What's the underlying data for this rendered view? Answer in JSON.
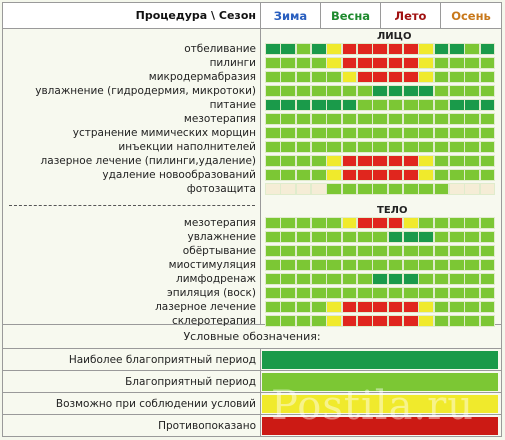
{
  "header": {
    "procedure_season": "Процедура \\ Сезон",
    "seasons": [
      {
        "label": "Зима",
        "color": "#2a5fbf"
      },
      {
        "label": "Весна",
        "color": "#1e8a2e"
      },
      {
        "label": "Лето",
        "color": "#a01010"
      },
      {
        "label": "Осень",
        "color": "#c8781a"
      }
    ]
  },
  "sections": [
    {
      "title": "ЛИЦО",
      "rows": [
        {
          "label": "отбеливание",
          "months": [
            "D",
            "D",
            "G",
            "D",
            "Y",
            "R",
            "R",
            "R",
            "R",
            "R",
            "Y",
            "D",
            "D",
            "G",
            "D"
          ]
        },
        {
          "label": "пилинги",
          "months": [
            "G",
            "G",
            "G",
            "G",
            "Y",
            "R",
            "R",
            "R",
            "R",
            "R",
            "Y",
            "G",
            "G",
            "G",
            "G"
          ]
        },
        {
          "label": "микродермабразия",
          "months": [
            "G",
            "G",
            "G",
            "G",
            "G",
            "Y",
            "R",
            "R",
            "R",
            "R",
            "Y",
            "G",
            "G",
            "G",
            "G"
          ]
        },
        {
          "label": "увлажнение (гидродермия, микротоки)",
          "months": [
            "G",
            "G",
            "G",
            "G",
            "G",
            "G",
            "G",
            "D",
            "D",
            "D",
            "D",
            "G",
            "G",
            "G",
            "G"
          ]
        },
        {
          "label": "питание",
          "months": [
            "D",
            "D",
            "D",
            "D",
            "D",
            "D",
            "G",
            "G",
            "G",
            "G",
            "G",
            "G",
            "D",
            "D",
            "D"
          ]
        },
        {
          "label": "мезотерапия",
          "months": [
            "G",
            "G",
            "G",
            "G",
            "G",
            "G",
            "G",
            "G",
            "G",
            "G",
            "G",
            "G",
            "G",
            "G",
            "G"
          ]
        },
        {
          "label": "устранение мимических морщин",
          "months": [
            "G",
            "G",
            "G",
            "G",
            "G",
            "G",
            "G",
            "G",
            "G",
            "G",
            "G",
            "G",
            "G",
            "G",
            "G"
          ]
        },
        {
          "label": "инъекции наполнителей",
          "months": [
            "G",
            "G",
            "G",
            "G",
            "G",
            "G",
            "G",
            "G",
            "G",
            "G",
            "G",
            "G",
            "G",
            "G",
            "G"
          ]
        },
        {
          "label": "лазерное лечение (пилинги,удаление)",
          "months": [
            "G",
            "G",
            "G",
            "G",
            "Y",
            "R",
            "R",
            "R",
            "R",
            "R",
            "Y",
            "G",
            "G",
            "G",
            "G"
          ]
        },
        {
          "label": "удаление новообразований",
          "months": [
            "G",
            "G",
            "G",
            "G",
            "Y",
            "R",
            "R",
            "R",
            "R",
            "R",
            "Y",
            "G",
            "G",
            "G",
            "G"
          ]
        },
        {
          "label": "фотозащита",
          "months": [
            "C",
            "C",
            "C",
            "C",
            "G",
            "G",
            "G",
            "G",
            "G",
            "G",
            "G",
            "G",
            "C",
            "C",
            "C"
          ]
        }
      ]
    },
    {
      "title": "ТЕЛО",
      "rows": [
        {
          "label": "мезотерапия",
          "months": [
            "G",
            "G",
            "G",
            "G",
            "G",
            "Y",
            "R",
            "R",
            "R",
            "Y",
            "G",
            "G",
            "G",
            "G",
            "G"
          ]
        },
        {
          "label": "увлажнение",
          "months": [
            "G",
            "G",
            "G",
            "G",
            "G",
            "G",
            "G",
            "G",
            "D",
            "D",
            "D",
            "G",
            "G",
            "G",
            "G"
          ]
        },
        {
          "label": "обёртывание",
          "months": [
            "G",
            "G",
            "G",
            "G",
            "G",
            "G",
            "G",
            "G",
            "G",
            "G",
            "G",
            "G",
            "G",
            "G",
            "G"
          ]
        },
        {
          "label": "миостимуляция",
          "months": [
            "G",
            "G",
            "G",
            "G",
            "G",
            "G",
            "G",
            "G",
            "G",
            "G",
            "G",
            "G",
            "G",
            "G",
            "G"
          ]
        },
        {
          "label": "лимфодренаж",
          "months": [
            "G",
            "G",
            "G",
            "G",
            "G",
            "G",
            "G",
            "D",
            "D",
            "D",
            "G",
            "G",
            "G",
            "G",
            "G"
          ]
        },
        {
          "label": "эпиляция (воск)",
          "months": [
            "G",
            "G",
            "G",
            "G",
            "G",
            "G",
            "G",
            "G",
            "G",
            "G",
            "G",
            "G",
            "G",
            "G",
            "G"
          ]
        },
        {
          "label": "лазерное лечение",
          "months": [
            "G",
            "G",
            "G",
            "G",
            "Y",
            "R",
            "R",
            "R",
            "R",
            "R",
            "Y",
            "G",
            "G",
            "G",
            "G"
          ]
        },
        {
          "label": "склеротерапия",
          "months": [
            "G",
            "G",
            "G",
            "G",
            "Y",
            "R",
            "R",
            "R",
            "R",
            "R",
            "Y",
            "G",
            "G",
            "G",
            "G"
          ]
        }
      ]
    }
  ],
  "colors": {
    "D": "#1a9a4a",
    "G": "#7cc734",
    "Y": "#f0ea2c",
    "R": "#e0261e",
    "C": "#f5edd6"
  },
  "legend": {
    "title": "Условные обозначения:",
    "items": [
      {
        "label": "Наиболее благоприятный период",
        "color": "#1a9a4a"
      },
      {
        "label": "Благоприятный период",
        "color": "#7cc734"
      },
      {
        "label": "Возможно при соблюдении условий",
        "color": "#f0ea2c"
      },
      {
        "label": "Противопоказано",
        "color": "#cc1a14"
      }
    ]
  },
  "watermark": "Postila.ru"
}
